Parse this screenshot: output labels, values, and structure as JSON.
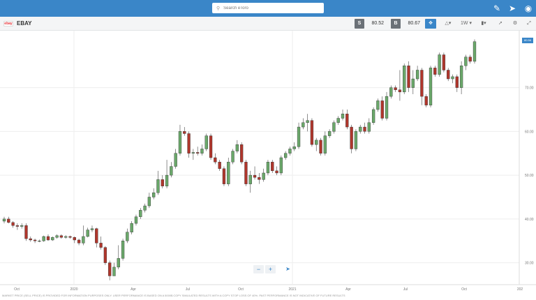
{
  "topbar": {
    "search_placeholder": "Search eToro",
    "icons": [
      "pencil-icon",
      "share-icon",
      "bull-icon"
    ]
  },
  "toolbar": {
    "symbol": "EBAY",
    "logo_text": "ebay",
    "sell_label": "S",
    "sell_price": "80.52",
    "buy_label": "B",
    "buy_price": "80.67",
    "timeframe": "1W"
  },
  "chart_data": {
    "type": "candlestick",
    "x_ticks": [
      "Oct",
      "2020",
      "Apr",
      "Jul",
      "Oct",
      "2021",
      "Apr",
      "Jul",
      "Oct",
      "202"
    ],
    "y_ticks": [
      "30.00",
      "40.00",
      "50.00",
      "60.00",
      "70.00"
    ],
    "ylim": [
      25,
      83
    ],
    "last_price_label": "80.56",
    "up_color": "#6aa86a",
    "down_color": "#b0362c",
    "candles": [
      [
        39.5,
        40,
        39,
        40.5
      ],
      [
        40,
        39.2,
        39,
        40.5
      ],
      [
        39.2,
        38.5,
        38,
        39.5
      ],
      [
        38.5,
        38.3,
        37.5,
        39
      ],
      [
        38.3,
        38.5,
        37.8,
        39
      ],
      [
        38.5,
        35.5,
        35,
        39
      ],
      [
        35.5,
        35.2,
        34.8,
        36
      ],
      [
        35.2,
        35,
        34.5,
        35.5
      ],
      [
        35,
        35,
        34.7,
        35.3
      ],
      [
        35,
        36,
        34.8,
        36.2
      ],
      [
        36,
        35.2,
        35,
        36.5
      ],
      [
        35.2,
        35.8,
        35,
        36
      ],
      [
        35.8,
        36.2,
        35.5,
        36.5
      ],
      [
        36.2,
        35.8,
        35.5,
        36.5
      ],
      [
        35.8,
        36,
        35.5,
        36.3
      ],
      [
        36,
        35.8,
        35.5,
        36.2
      ],
      [
        35.8,
        35.2,
        34.5,
        36
      ],
      [
        35.2,
        34.5,
        34,
        35.5
      ],
      [
        34.5,
        36,
        34,
        38.5
      ],
      [
        36,
        37.5,
        35.8,
        38
      ],
      [
        37.5,
        37.8,
        37,
        38.5
      ],
      [
        37.8,
        34.5,
        33.5,
        38
      ],
      [
        34.5,
        33.5,
        33,
        36
      ],
      [
        33.5,
        30,
        29.5,
        33.8
      ],
      [
        30,
        27,
        26,
        30.5
      ],
      [
        27,
        29,
        27.5,
        30
      ],
      [
        29,
        31,
        28.5,
        34
      ],
      [
        31,
        35,
        30.5,
        35.5
      ],
      [
        35,
        37,
        34.5,
        37.8
      ],
      [
        37,
        39,
        36.5,
        39.5
      ],
      [
        39,
        40.5,
        38.5,
        41
      ],
      [
        40.5,
        42,
        40,
        42.5
      ],
      [
        42,
        43,
        41.5,
        43.5
      ],
      [
        43,
        45,
        42.5,
        46
      ],
      [
        45,
        46,
        44.5,
        47
      ],
      [
        46,
        49,
        45.5,
        51
      ],
      [
        49,
        47.5,
        47,
        50
      ],
      [
        47.5,
        50,
        47,
        53.5
      ],
      [
        50,
        52,
        49.5,
        53
      ],
      [
        52,
        55,
        51.5,
        56
      ],
      [
        55,
        60,
        54.5,
        61.5
      ],
      [
        60,
        59.5,
        59,
        61
      ],
      [
        59.5,
        55,
        54,
        60
      ],
      [
        55,
        55.2,
        53.5,
        56
      ],
      [
        55.2,
        55,
        54.5,
        56.5
      ],
      [
        55,
        56,
        54.5,
        57
      ],
      [
        56,
        59,
        55.5,
        59.5
      ],
      [
        59,
        54,
        53.5,
        59.5
      ],
      [
        54,
        53,
        52.5,
        55
      ],
      [
        53,
        51.5,
        51,
        53.5
      ],
      [
        51.5,
        48,
        47.5,
        52
      ],
      [
        48,
        53,
        47.5,
        54
      ],
      [
        53,
        55.5,
        52.5,
        56
      ],
      [
        55.5,
        57,
        55,
        58
      ],
      [
        57,
        53,
        52.5,
        57.5
      ],
      [
        53,
        48,
        47.5,
        53.5
      ],
      [
        48,
        50,
        46,
        51
      ],
      [
        50,
        49.5,
        49,
        52
      ],
      [
        49.5,
        49,
        48,
        50.5
      ],
      [
        49,
        50.5,
        48.5,
        51.5
      ],
      [
        50.5,
        53,
        50,
        53.5
      ],
      [
        53,
        51,
        50.5,
        53.5
      ],
      [
        51,
        50.5,
        50,
        52
      ],
      [
        50.5,
        54,
        50,
        54.5
      ],
      [
        54,
        55,
        53.5,
        55.5
      ],
      [
        55,
        56,
        54.5,
        56.5
      ],
      [
        56,
        56.5,
        55.5,
        57.5
      ],
      [
        56.5,
        61,
        56,
        62
      ],
      [
        61,
        62,
        60.5,
        63
      ],
      [
        62,
        62.5,
        60,
        64
      ],
      [
        62.5,
        57,
        56.5,
        63
      ],
      [
        57,
        58,
        55.5,
        58.5
      ],
      [
        58,
        55,
        54.5,
        58.5
      ],
      [
        55,
        59,
        54.5,
        60
      ],
      [
        59,
        60,
        58.5,
        60.5
      ],
      [
        60,
        62,
        59.5,
        62.5
      ],
      [
        62,
        63,
        61.5,
        63.5
      ],
      [
        63,
        64,
        62.5,
        65
      ],
      [
        64,
        61,
        60.5,
        65
      ],
      [
        61,
        56,
        55,
        61.5
      ],
      [
        56,
        60,
        55.5,
        60.5
      ],
      [
        60,
        61,
        59.5,
        61.5
      ],
      [
        61,
        60,
        59.5,
        62
      ],
      [
        60,
        62,
        59.5,
        63
      ],
      [
        62,
        65,
        61.5,
        65.5
      ],
      [
        65,
        67,
        64.5,
        67.5
      ],
      [
        67,
        63,
        62.5,
        68
      ],
      [
        63,
        68,
        62.5,
        69
      ],
      [
        68,
        70,
        67.5,
        70.5
      ],
      [
        70,
        69.5,
        69,
        70.5
      ],
      [
        69.5,
        69,
        67,
        74
      ],
      [
        69,
        75,
        68.5,
        75.5
      ],
      [
        75,
        70,
        69,
        76
      ],
      [
        70,
        72,
        68.5,
        74
      ],
      [
        72,
        74,
        71.5,
        75
      ],
      [
        74,
        68,
        66,
        74.5
      ],
      [
        68,
        66,
        65.5,
        68.5
      ],
      [
        66,
        74.5,
        65.5,
        75
      ],
      [
        74.5,
        73,
        72.5,
        75
      ],
      [
        73,
        77.5,
        72.5,
        78
      ],
      [
        77.5,
        74,
        73.5,
        78
      ],
      [
        74,
        72,
        71.5,
        74.5
      ],
      [
        72,
        72.5,
        71,
        73
      ],
      [
        72.5,
        70,
        69,
        73
      ],
      [
        70,
        75,
        68.5,
        76
      ],
      [
        75,
        77,
        74,
        77.5
      ],
      [
        77,
        76,
        75.5,
        77.5
      ],
      [
        76,
        80.5,
        75.5,
        81
      ]
    ]
  },
  "disclaimer": "MARKET PRICE (SELL PRICE) IS PROVIDED FOR INFORMATION PURPOSES ONLY. USER PERFORMANCE IS BASED ON A 5000$ COPY SIMULATED RESULTS WITH A COPY STOP LOSS OF 40%. PAST PERFORMANCE IS NOT INDICATIVE OF FUTURE RESULTS",
  "zoom": {
    "minus": "−",
    "plus": "+"
  }
}
